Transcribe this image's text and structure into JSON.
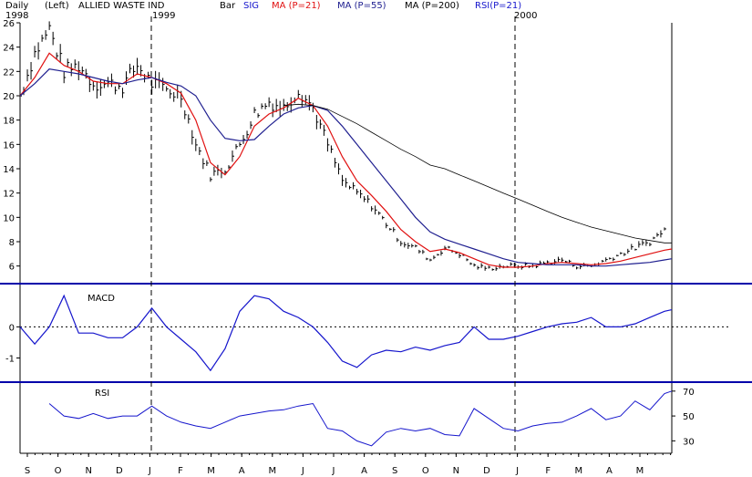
{
  "header": {
    "period": "Daily",
    "axis_side": "(Left)",
    "ticker": "ALLIED WASTE IND",
    "style": "Bar",
    "sig": "SIG",
    "ma21": "MA (P=21)",
    "ma55": "MA (P=55)",
    "ma200": "MA (P=200)",
    "rsi": "RSI(P=21)"
  },
  "year_labels": [
    "1998",
    "1999",
    "2000"
  ],
  "colors": {
    "price": "#000000",
    "ma21": "#e01010",
    "ma55": "#202090",
    "ma200": "#000000",
    "macd": "#1515cc",
    "rsi": "#1515cc",
    "divider": "#0000aa"
  },
  "chart_data": [
    {
      "type": "line",
      "title": "ALLIED WASTE IND",
      "ylim": [
        5,
        26
      ],
      "yticks": [
        6,
        8,
        10,
        12,
        14,
        16,
        18,
        20,
        22,
        24,
        26
      ],
      "months": [
        "S",
        "O",
        "N",
        "D",
        "J",
        "F",
        "M",
        "A",
        "M",
        "J",
        "J",
        "A",
        "S",
        "O",
        "N",
        "D",
        "J",
        "F",
        "M",
        "A",
        "M"
      ],
      "x": [
        0,
        2,
        4,
        6,
        8,
        10,
        12,
        14,
        16,
        18,
        20,
        22,
        24,
        26,
        28,
        30,
        32,
        34,
        36,
        38,
        40,
        42,
        44,
        46,
        48,
        50,
        52,
        54,
        56,
        58,
        60,
        62,
        64,
        66,
        68,
        70,
        72,
        74,
        76,
        78,
        80,
        82,
        84,
        86,
        88,
        89
      ],
      "series": [
        {
          "name": "Price (close)",
          "values": [
            20,
            23.5,
            25.5,
            22,
            22.5,
            21,
            21,
            20.8,
            22.5,
            21,
            20.5,
            20,
            16,
            13.5,
            14,
            16,
            18.5,
            19.5,
            19,
            20.5,
            19,
            16,
            13,
            12,
            11,
            9.5,
            8,
            7.5,
            6.5,
            7.5,
            7,
            6,
            5.8,
            6,
            6,
            6,
            6.3,
            6.5,
            6,
            6,
            6.5,
            7,
            7.5,
            8,
            9,
            9.5
          ]
        },
        {
          "name": "MA (P=21)",
          "values": [
            20,
            21.5,
            23.5,
            22.5,
            22,
            21.2,
            21,
            21,
            21.8,
            21.5,
            21,
            20.2,
            18,
            14.5,
            13.5,
            15,
            17.5,
            18.5,
            19,
            19.8,
            19.2,
            17.5,
            15,
            13,
            11.8,
            10.5,
            9,
            8,
            7.2,
            7.4,
            7.1,
            6.6,
            6.1,
            5.9,
            5.9,
            6,
            6.2,
            6.3,
            6.2,
            6.1,
            6.2,
            6.4,
            6.7,
            7,
            7.3,
            7.4
          ]
        },
        {
          "name": "MA (P=55)",
          "values": [
            20,
            21,
            22.2,
            22,
            21.8,
            21.5,
            21.2,
            21,
            21.3,
            21.5,
            21.1,
            20.8,
            20,
            18,
            16.5,
            16.3,
            16.4,
            17.5,
            18.5,
            19,
            19.2,
            18.8,
            17.5,
            16,
            14.5,
            13,
            11.5,
            10,
            8.8,
            8.2,
            7.8,
            7.4,
            7,
            6.6,
            6.3,
            6.2,
            6.1,
            6.1,
            6.1,
            6,
            6,
            6.1,
            6.2,
            6.3,
            6.5,
            6.6
          ]
        },
        {
          "name": "MA (P=200)",
          "values": [
            null,
            null,
            null,
            null,
            null,
            null,
            null,
            null,
            null,
            null,
            null,
            null,
            null,
            null,
            null,
            null,
            null,
            null,
            19.2,
            19.3,
            19.2,
            18.9,
            18.3,
            17.7,
            17,
            16.3,
            15.6,
            15,
            14.3,
            14,
            13.5,
            13,
            12.5,
            12,
            11.5,
            11,
            10.5,
            10,
            9.6,
            9.2,
            8.9,
            8.6,
            8.3,
            8.1,
            7.9,
            7.9
          ]
        }
      ]
    },
    {
      "type": "line",
      "title": "MACD",
      "ylim": [
        -1.6,
        1.3
      ],
      "yticks": [
        0,
        -1
      ],
      "reference_line": 0,
      "x": [
        0,
        2,
        4,
        6,
        8,
        10,
        12,
        14,
        16,
        18,
        20,
        22,
        24,
        26,
        28,
        30,
        32,
        34,
        36,
        38,
        40,
        42,
        44,
        46,
        48,
        50,
        52,
        54,
        56,
        58,
        60,
        62,
        64,
        66,
        68,
        70,
        72,
        74,
        76,
        78,
        80,
        82,
        84,
        86,
        88,
        89
      ],
      "series": [
        {
          "name": "MACD",
          "values": [
            0,
            -0.55,
            0,
            1.0,
            -0.2,
            -0.2,
            -0.35,
            -0.35,
            0,
            0.6,
            0,
            -0.4,
            -0.8,
            -1.4,
            -0.7,
            0.5,
            1.0,
            0.9,
            0.5,
            0.3,
            0,
            -0.5,
            -1.1,
            -1.3,
            -0.9,
            -0.75,
            -0.8,
            -0.65,
            -0.75,
            -0.6,
            -0.5,
            0,
            -0.4,
            -0.4,
            -0.3,
            -0.15,
            0,
            0.1,
            0.15,
            0.3,
            0,
            0,
            0.1,
            0.3,
            0.5,
            0.55
          ]
        }
      ]
    },
    {
      "type": "line",
      "title": "RSI",
      "ylim": [
        20,
        75
      ],
      "yticks": [
        70,
        50,
        30
      ],
      "x": [
        4,
        6,
        8,
        10,
        12,
        14,
        16,
        18,
        20,
        22,
        24,
        26,
        28,
        30,
        32,
        34,
        36,
        38,
        40,
        42,
        44,
        46,
        48,
        50,
        52,
        54,
        56,
        58,
        60,
        62,
        64,
        66,
        68,
        70,
        72,
        74,
        76,
        78,
        80,
        82,
        84,
        86,
        88,
        89
      ],
      "series": [
        {
          "name": "RSI(P=21)",
          "values": [
            60,
            50,
            48,
            52,
            48,
            50,
            50,
            58,
            50,
            45,
            42,
            40,
            45,
            50,
            52,
            54,
            55,
            58,
            60,
            40,
            38,
            30,
            26,
            37,
            40,
            38,
            40,
            35,
            34,
            56,
            48,
            40,
            38,
            42,
            44,
            45,
            50,
            56,
            47,
            50,
            62,
            55,
            68,
            70
          ]
        }
      ]
    }
  ]
}
